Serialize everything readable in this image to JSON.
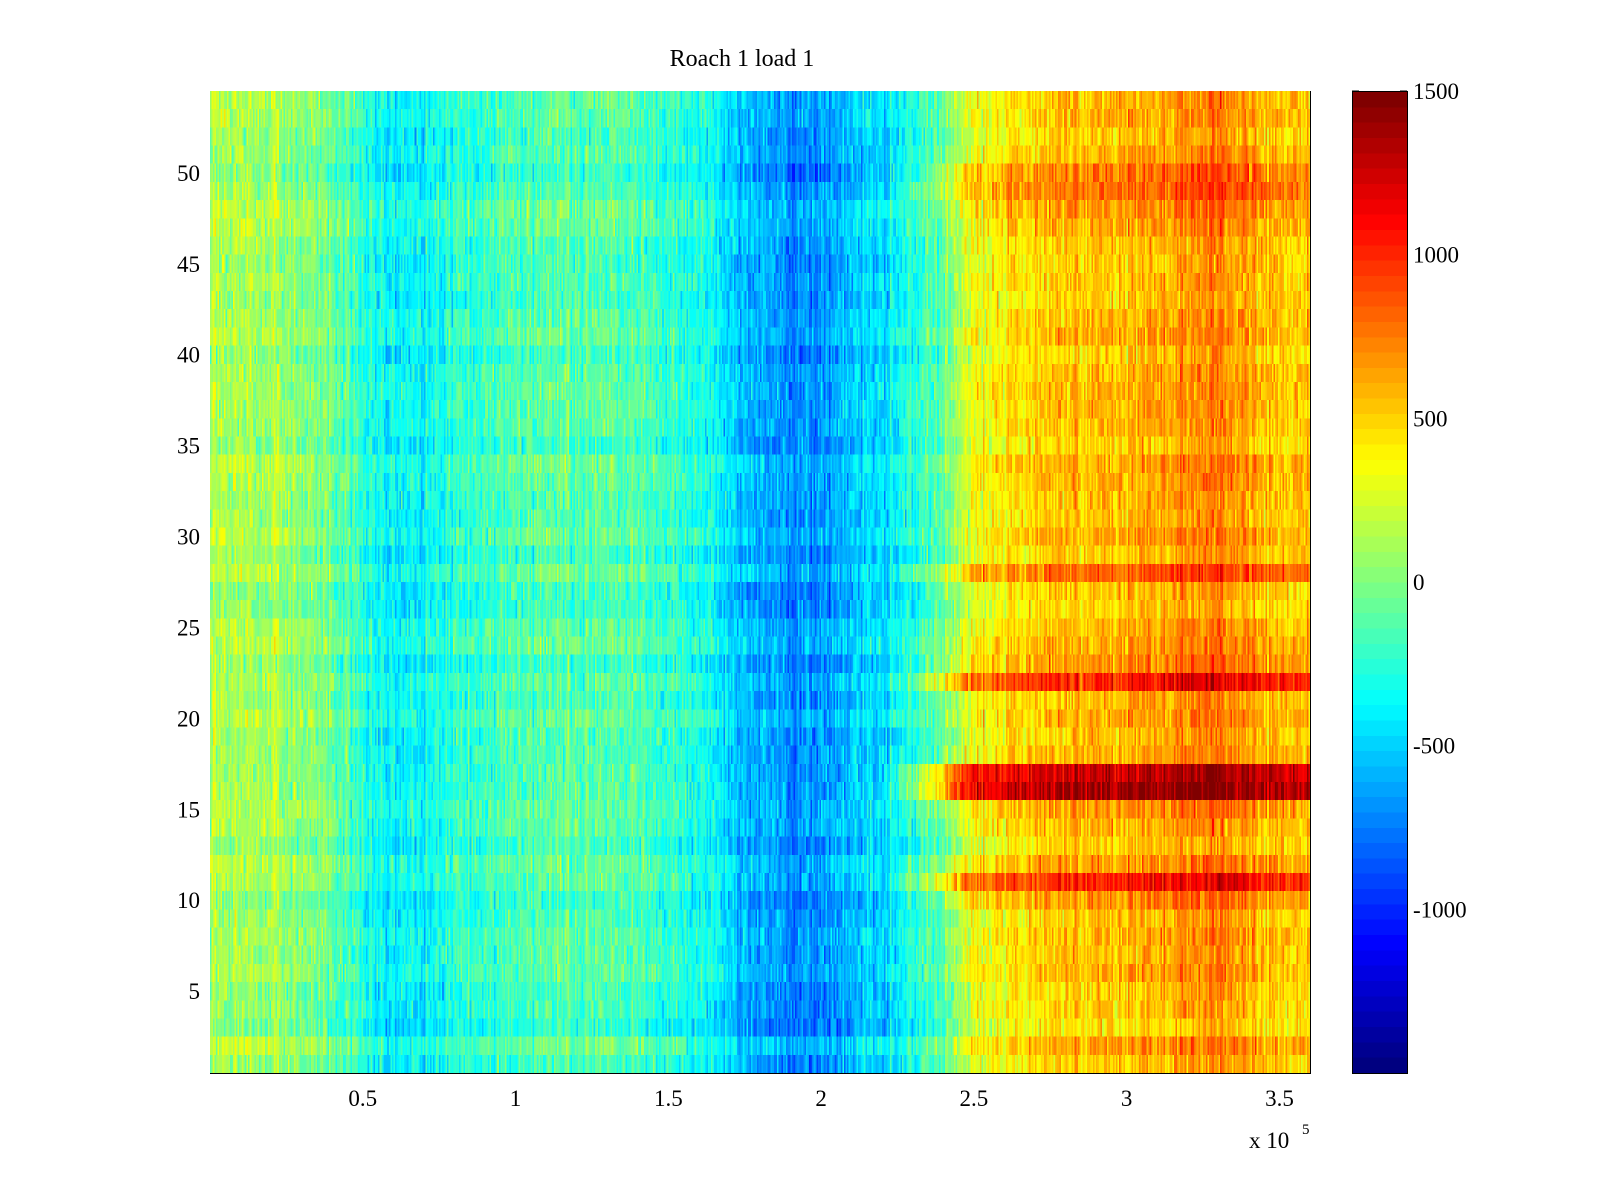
{
  "chart_data": {
    "type": "heatmap",
    "title": "Roach 1 load 1",
    "xlabel": "",
    "ylabel": "",
    "x_multiplier_label": {
      "base": "x 10",
      "exponent": "5"
    },
    "xlim": [
      0,
      3.6
    ],
    "ylim": [
      0.5,
      54.5
    ],
    "x_ticks": [
      0.5,
      1,
      1.5,
      2,
      2.5,
      3,
      3.5
    ],
    "x_tick_labels": [
      "0.5",
      "1",
      "1.5",
      "2",
      "2.5",
      "3",
      "3.5"
    ],
    "y_ticks": [
      5,
      10,
      15,
      20,
      25,
      30,
      35,
      40,
      45,
      50
    ],
    "y_tick_labels": [
      "5",
      "10",
      "15",
      "20",
      "25",
      "30",
      "35",
      "40",
      "45",
      "50"
    ],
    "rows": 54,
    "colormap": "jet",
    "clim": [
      -1500,
      1500
    ],
    "colorbar_ticks": [
      1500,
      1000,
      500,
      0,
      -500,
      -1000
    ],
    "colorbar_tick_labels": [
      "1500",
      "1000",
      "500",
      "0",
      "-500",
      "-1000"
    ],
    "column_profile_x": [
      0,
      0.2,
      0.4,
      0.5,
      0.6,
      0.7,
      0.8,
      1.0,
      1.2,
      1.4,
      1.6,
      1.75,
      1.9,
      2.0,
      2.1,
      2.25,
      2.4,
      2.5,
      2.7,
      2.9,
      3.1,
      3.3,
      3.45,
      3.6
    ],
    "column_profile_mean": [
      150,
      100,
      -50,
      -250,
      -400,
      -350,
      -250,
      -150,
      -100,
      -150,
      -300,
      -550,
      -700,
      -650,
      -550,
      -400,
      -50,
      300,
      500,
      550,
      600,
      750,
      550,
      500
    ],
    "row_offsets": [
      {
        "row": 10.5,
        "offset": 250
      },
      {
        "row": 11,
        "offset": 300
      },
      {
        "row": 16,
        "offset": 450
      },
      {
        "row": 16.5,
        "offset": 500
      },
      {
        "row": 17,
        "offset": 350
      },
      {
        "row": 22,
        "offset": 300
      },
      {
        "row": 22.5,
        "offset": 250
      },
      {
        "row": 28,
        "offset": 200
      },
      {
        "row": 50,
        "offset": 250
      },
      {
        "row": 49,
        "offset": 200
      }
    ],
    "noise_amplitude": 260,
    "colors": {
      "background": "#ffffff",
      "axis": "#000000"
    }
  }
}
